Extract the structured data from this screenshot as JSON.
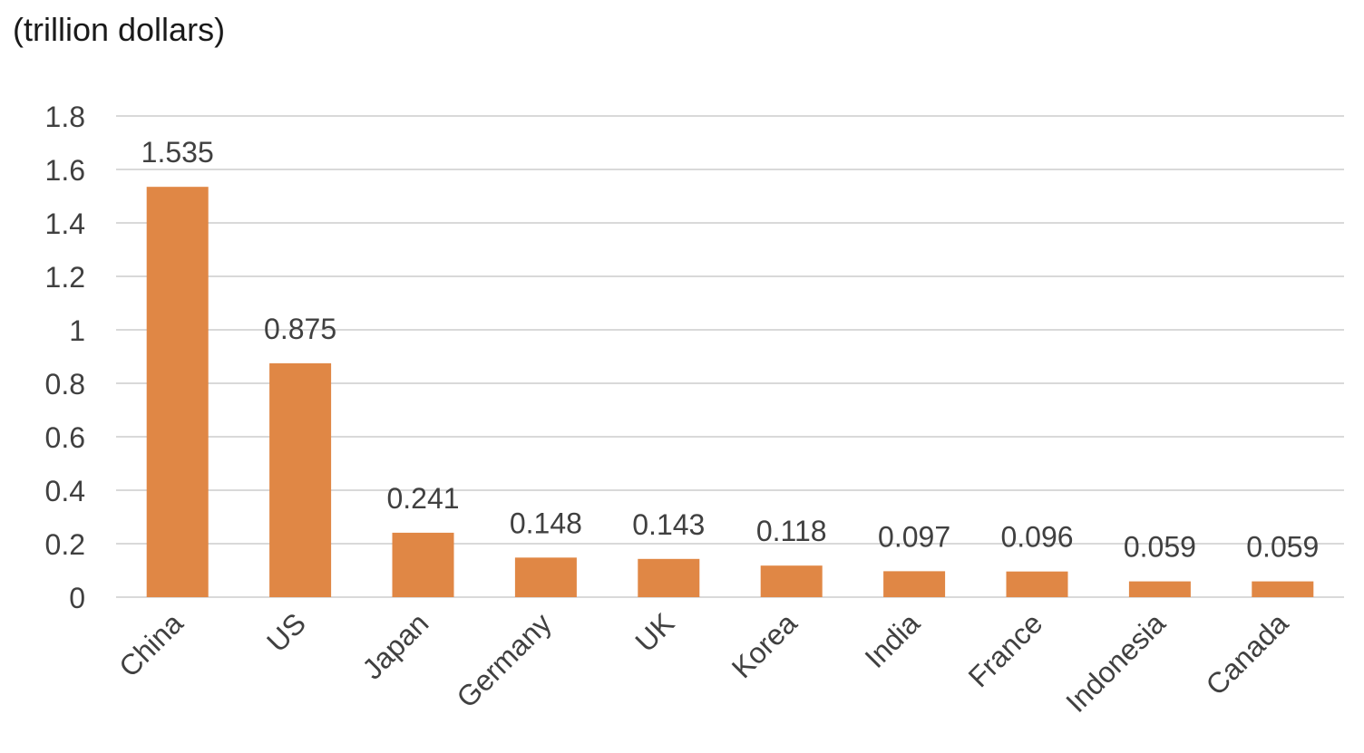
{
  "chart_data": {
    "type": "bar",
    "ylabel": "(trillion dollars)",
    "categories": [
      "China",
      "US",
      "Japan",
      "Germany",
      "UK",
      "Korea",
      "India",
      "France",
      "Indonesia",
      "Canada"
    ],
    "values": [
      1.535,
      0.875,
      0.241,
      0.148,
      0.143,
      0.118,
      0.097,
      0.096,
      0.059,
      0.059
    ],
    "data_labels": [
      "1.535",
      "0.875",
      "0.241",
      "0.148",
      "0.143",
      "0.118",
      "0.097",
      "0.096",
      "0.059",
      "0.059"
    ],
    "y_ticks": [
      "0",
      "0.2",
      "0.4",
      "0.6",
      "0.8",
      "1",
      "1.2",
      "1.4",
      "1.6",
      "1.8"
    ],
    "ylim": [
      0,
      1.8
    ],
    "grid": true,
    "legend": "none",
    "colors": {
      "bar": "#E08745",
      "grid": "#d9d9d9",
      "text": "#404040"
    }
  }
}
